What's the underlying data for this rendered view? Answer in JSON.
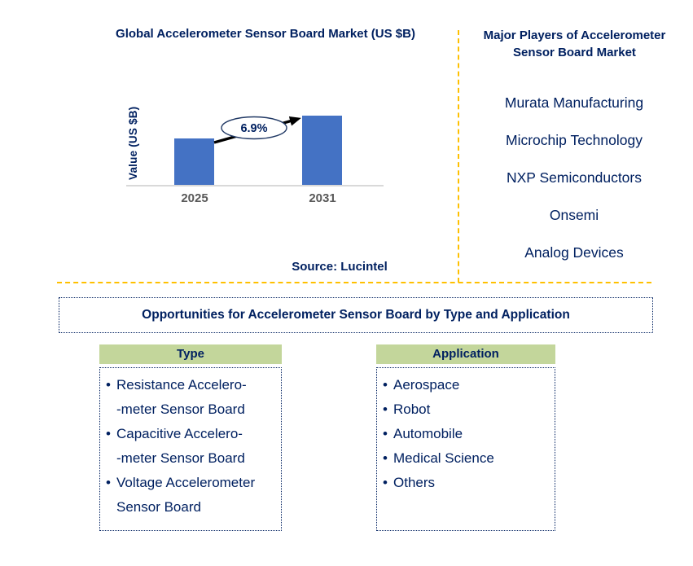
{
  "chart": {
    "title": "Global Accelerometer Sensor Board Market (US $B)",
    "y_axis_label": "Value (US $B)",
    "growth_label": "6.9%",
    "source": "Source: Lucintel"
  },
  "chart_data": {
    "type": "bar",
    "title": "Global Accelerometer Sensor Board Market (US $B)",
    "categories": [
      "2025",
      "2031"
    ],
    "values_relative": [
      1.0,
      1.49
    ],
    "ylabel": "Value (US $B)",
    "xlabel": "",
    "annotation": "6.9%",
    "annotation_meaning": "growth from 2025 to 2031 shown by arrow between bars",
    "bar_color": "#4472C4",
    "grid": false,
    "legend": false,
    "value_labels_shown": false
  },
  "players_panel": {
    "title": "Major Players of Accelerometer Sensor Board Market",
    "players": [
      "Murata Manufacturing",
      "Microchip Technology",
      "NXP Semiconductors",
      "Onsemi",
      "Analog Devices"
    ]
  },
  "opportunities": {
    "title": "Opportunities for Accelerometer Sensor Board by Type and Application"
  },
  "type_section": {
    "header": "Type",
    "lines": [
      {
        "m": "•",
        "t": "Resistance Accelero-"
      },
      {
        "m": "",
        "t": "-meter Sensor Board"
      },
      {
        "m": "•",
        "t": "Capacitive Accelero-"
      },
      {
        "m": "",
        "t": "-meter Sensor Board"
      },
      {
        "m": "•",
        "t": "Voltage Accelerometer"
      },
      {
        "m": "",
        "t": "Sensor Board"
      }
    ]
  },
  "application_section": {
    "header": "Application",
    "lines": [
      {
        "m": "•",
        "t": "Aerospace"
      },
      {
        "m": "•",
        "t": "Robot"
      },
      {
        "m": "•",
        "t": "Automobile"
      },
      {
        "m": "•",
        "t": "Medical Science"
      },
      {
        "m": "•",
        "t": "Others"
      }
    ]
  },
  "colors": {
    "accent_text": "#002060",
    "bar_blue": "#4472C4",
    "divider_gold": "#FFC000",
    "header_green": "#C3D69B",
    "axis_label_gray": "#595959",
    "axis_line_gray": "#D9D9D9"
  }
}
